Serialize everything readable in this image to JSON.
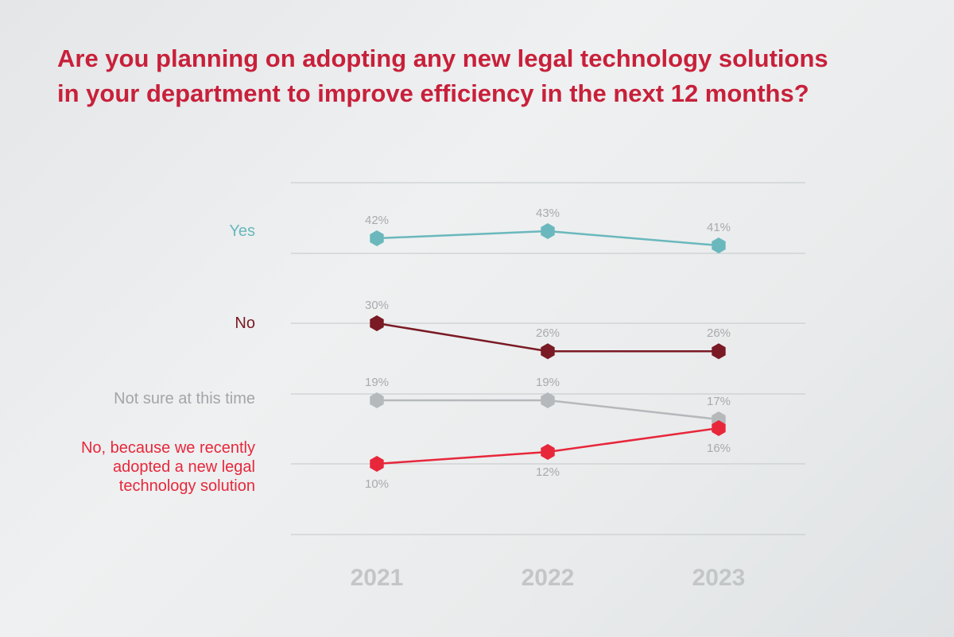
{
  "chart_data": {
    "type": "line",
    "title": "Are you planning on adopting any new legal technology solutions in your department to improve efficiency in the next 12 months?",
    "categories": [
      "2021",
      "2022",
      "2023"
    ],
    "value_suffix": "%",
    "grid": true,
    "legend": "left",
    "series": [
      {
        "name": "Yes",
        "values": [
          42,
          43,
          41
        ],
        "color": "#6ab8bd",
        "label_position": "above"
      },
      {
        "name": "No",
        "values": [
          30,
          26,
          26
        ],
        "color": "#7a1a24",
        "label_position": "above"
      },
      {
        "name": "Not sure at this time",
        "values": [
          19,
          19,
          17
        ],
        "color": "#b6b9bc",
        "label_position": "above"
      },
      {
        "name": "No, because we recently adopted a new legal technology solution",
        "values": [
          10,
          12,
          16
        ],
        "color": "#e8273b",
        "label_position": "below"
      }
    ]
  }
}
